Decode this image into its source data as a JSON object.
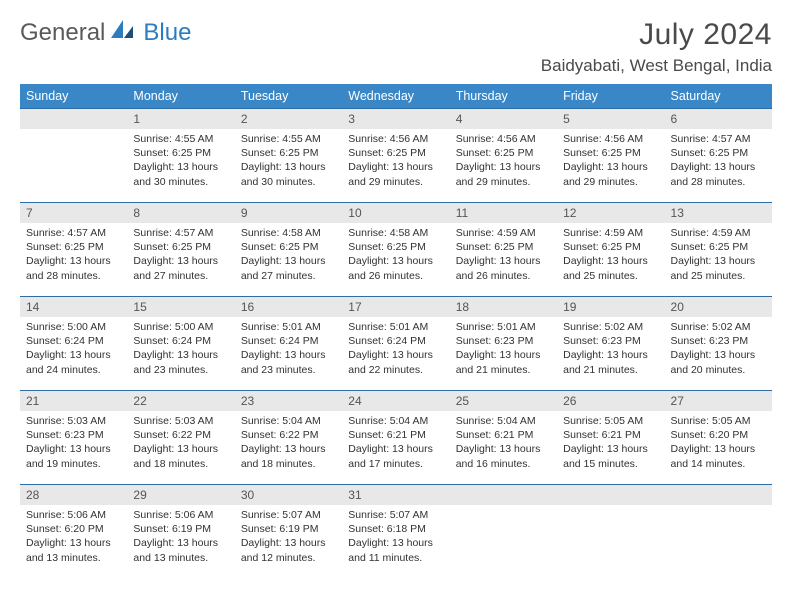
{
  "brand": {
    "text1": "General",
    "text2": "Blue"
  },
  "title": "July 2024",
  "location": "Baidyabati, West Bengal, India",
  "colors": {
    "header_bg": "#3a87c8",
    "header_text": "#ffffff",
    "daynum_bg": "#e8e8e8",
    "border": "#2e6da4",
    "brand_blue": "#2e7cc0"
  },
  "daynames": [
    "Sunday",
    "Monday",
    "Tuesday",
    "Wednesday",
    "Thursday",
    "Friday",
    "Saturday"
  ],
  "weeks": [
    [
      {
        "num": "",
        "lines": []
      },
      {
        "num": "1",
        "lines": [
          "Sunrise: 4:55 AM",
          "Sunset: 6:25 PM",
          "Daylight: 13 hours and 30 minutes."
        ]
      },
      {
        "num": "2",
        "lines": [
          "Sunrise: 4:55 AM",
          "Sunset: 6:25 PM",
          "Daylight: 13 hours and 30 minutes."
        ]
      },
      {
        "num": "3",
        "lines": [
          "Sunrise: 4:56 AM",
          "Sunset: 6:25 PM",
          "Daylight: 13 hours and 29 minutes."
        ]
      },
      {
        "num": "4",
        "lines": [
          "Sunrise: 4:56 AM",
          "Sunset: 6:25 PM",
          "Daylight: 13 hours and 29 minutes."
        ]
      },
      {
        "num": "5",
        "lines": [
          "Sunrise: 4:56 AM",
          "Sunset: 6:25 PM",
          "Daylight: 13 hours and 29 minutes."
        ]
      },
      {
        "num": "6",
        "lines": [
          "Sunrise: 4:57 AM",
          "Sunset: 6:25 PM",
          "Daylight: 13 hours and 28 minutes."
        ]
      }
    ],
    [
      {
        "num": "7",
        "lines": [
          "Sunrise: 4:57 AM",
          "Sunset: 6:25 PM",
          "Daylight: 13 hours and 28 minutes."
        ]
      },
      {
        "num": "8",
        "lines": [
          "Sunrise: 4:57 AM",
          "Sunset: 6:25 PM",
          "Daylight: 13 hours and 27 minutes."
        ]
      },
      {
        "num": "9",
        "lines": [
          "Sunrise: 4:58 AM",
          "Sunset: 6:25 PM",
          "Daylight: 13 hours and 27 minutes."
        ]
      },
      {
        "num": "10",
        "lines": [
          "Sunrise: 4:58 AM",
          "Sunset: 6:25 PM",
          "Daylight: 13 hours and 26 minutes."
        ]
      },
      {
        "num": "11",
        "lines": [
          "Sunrise: 4:59 AM",
          "Sunset: 6:25 PM",
          "Daylight: 13 hours and 26 minutes."
        ]
      },
      {
        "num": "12",
        "lines": [
          "Sunrise: 4:59 AM",
          "Sunset: 6:25 PM",
          "Daylight: 13 hours and 25 minutes."
        ]
      },
      {
        "num": "13",
        "lines": [
          "Sunrise: 4:59 AM",
          "Sunset: 6:25 PM",
          "Daylight: 13 hours and 25 minutes."
        ]
      }
    ],
    [
      {
        "num": "14",
        "lines": [
          "Sunrise: 5:00 AM",
          "Sunset: 6:24 PM",
          "Daylight: 13 hours and 24 minutes."
        ]
      },
      {
        "num": "15",
        "lines": [
          "Sunrise: 5:00 AM",
          "Sunset: 6:24 PM",
          "Daylight: 13 hours and 23 minutes."
        ]
      },
      {
        "num": "16",
        "lines": [
          "Sunrise: 5:01 AM",
          "Sunset: 6:24 PM",
          "Daylight: 13 hours and 23 minutes."
        ]
      },
      {
        "num": "17",
        "lines": [
          "Sunrise: 5:01 AM",
          "Sunset: 6:24 PM",
          "Daylight: 13 hours and 22 minutes."
        ]
      },
      {
        "num": "18",
        "lines": [
          "Sunrise: 5:01 AM",
          "Sunset: 6:23 PM",
          "Daylight: 13 hours and 21 minutes."
        ]
      },
      {
        "num": "19",
        "lines": [
          "Sunrise: 5:02 AM",
          "Sunset: 6:23 PM",
          "Daylight: 13 hours and 21 minutes."
        ]
      },
      {
        "num": "20",
        "lines": [
          "Sunrise: 5:02 AM",
          "Sunset: 6:23 PM",
          "Daylight: 13 hours and 20 minutes."
        ]
      }
    ],
    [
      {
        "num": "21",
        "lines": [
          "Sunrise: 5:03 AM",
          "Sunset: 6:23 PM",
          "Daylight: 13 hours and 19 minutes."
        ]
      },
      {
        "num": "22",
        "lines": [
          "Sunrise: 5:03 AM",
          "Sunset: 6:22 PM",
          "Daylight: 13 hours and 18 minutes."
        ]
      },
      {
        "num": "23",
        "lines": [
          "Sunrise: 5:04 AM",
          "Sunset: 6:22 PM",
          "Daylight: 13 hours and 18 minutes."
        ]
      },
      {
        "num": "24",
        "lines": [
          "Sunrise: 5:04 AM",
          "Sunset: 6:21 PM",
          "Daylight: 13 hours and 17 minutes."
        ]
      },
      {
        "num": "25",
        "lines": [
          "Sunrise: 5:04 AM",
          "Sunset: 6:21 PM",
          "Daylight: 13 hours and 16 minutes."
        ]
      },
      {
        "num": "26",
        "lines": [
          "Sunrise: 5:05 AM",
          "Sunset: 6:21 PM",
          "Daylight: 13 hours and 15 minutes."
        ]
      },
      {
        "num": "27",
        "lines": [
          "Sunrise: 5:05 AM",
          "Sunset: 6:20 PM",
          "Daylight: 13 hours and 14 minutes."
        ]
      }
    ],
    [
      {
        "num": "28",
        "lines": [
          "Sunrise: 5:06 AM",
          "Sunset: 6:20 PM",
          "Daylight: 13 hours and 13 minutes."
        ]
      },
      {
        "num": "29",
        "lines": [
          "Sunrise: 5:06 AM",
          "Sunset: 6:19 PM",
          "Daylight: 13 hours and 13 minutes."
        ]
      },
      {
        "num": "30",
        "lines": [
          "Sunrise: 5:07 AM",
          "Sunset: 6:19 PM",
          "Daylight: 13 hours and 12 minutes."
        ]
      },
      {
        "num": "31",
        "lines": [
          "Sunrise: 5:07 AM",
          "Sunset: 6:18 PM",
          "Daylight: 13 hours and 11 minutes."
        ]
      },
      {
        "num": "",
        "lines": []
      },
      {
        "num": "",
        "lines": []
      },
      {
        "num": "",
        "lines": []
      }
    ]
  ]
}
